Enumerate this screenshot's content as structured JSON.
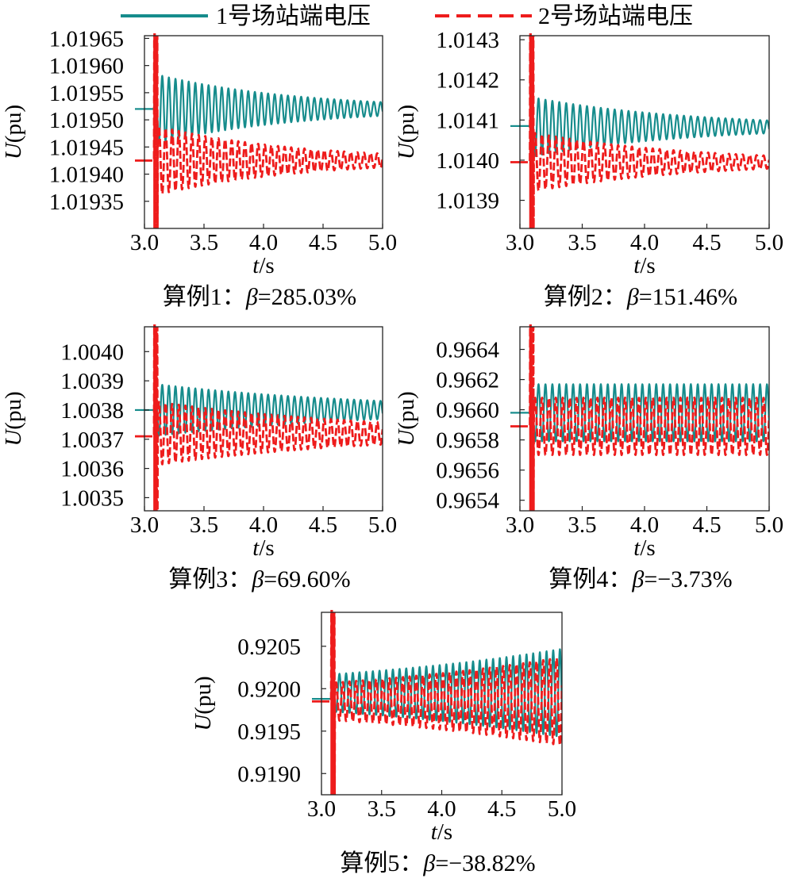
{
  "legend": {
    "items": [
      {
        "label": "1号场站端电压",
        "color": "#168c8c",
        "dash": "solid"
      },
      {
        "label": "2号场站端电压",
        "color": "#ee1c1c",
        "dash": "dashed"
      }
    ]
  },
  "chart_data": [
    {
      "type": "line",
      "caption": "算例1：β=285.03%",
      "xlabel": "t/s",
      "ylabel": "U(pu)",
      "xlim": [
        3.0,
        5.0
      ],
      "xticks": [
        3.0,
        3.5,
        4.0,
        4.5,
        5.0
      ],
      "ylim": [
        1.0193,
        1.019655
      ],
      "yticks": [
        1.01935,
        1.0194,
        1.01945,
        1.0195,
        1.01955,
        1.0196,
        1.01965
      ],
      "yticklabels": [
        "1.01935",
        "1.01940",
        "1.01945",
        "1.01950",
        "1.01955",
        "1.01960",
        "1.01965"
      ],
      "grid": false,
      "series": [
        {
          "name": "1号场站端电压",
          "color": "#168c8c",
          "dash": "solid",
          "pre_fault": 1.01952,
          "settle": 1.01952,
          "amp_start": 6.5e-05,
          "decay": 0.85,
          "freq": 18,
          "phase": 0
        },
        {
          "name": "2号场站端电压",
          "color": "#ee1c1c",
          "dash": "dashed",
          "pre_fault": 1.019425,
          "settle": 1.019425,
          "amp_start": 6.5e-05,
          "decay": 0.85,
          "freq": 18,
          "phase": 3.14,
          "spike_max": 1.01966,
          "spike_min": 1.0193
        }
      ]
    },
    {
      "type": "line",
      "caption": "算例2：β=151.46%",
      "xlabel": "t/s",
      "ylabel": "U(pu)",
      "xlim": [
        3.0,
        5.0
      ],
      "xticks": [
        3.0,
        3.5,
        4.0,
        4.5,
        5.0
      ],
      "ylim": [
        1.01383,
        1.01431
      ],
      "yticks": [
        1.0139,
        1.014,
        1.0141,
        1.0142,
        1.0143
      ],
      "yticklabels": [
        "1.0139",
        "1.0140",
        "1.0141",
        "1.0142",
        "1.0143"
      ],
      "grid": false,
      "series": [
        {
          "name": "1号场站端电压",
          "color": "#168c8c",
          "dash": "solid",
          "pre_fault": 1.014085,
          "settle": 1.014083,
          "amp_start": 7.5e-05,
          "decay": 0.8,
          "freq": 18,
          "phase": 0
        },
        {
          "name": "2号场站端电压",
          "color": "#ee1c1c",
          "dash": "dashed",
          "pre_fault": 1.013995,
          "settle": 1.013995,
          "amp_start": 7.5e-05,
          "decay": 0.8,
          "freq": 18,
          "phase": 3.14,
          "spike_max": 1.01431,
          "spike_min": 1.01383
        }
      ]
    },
    {
      "type": "line",
      "caption": "算例3：β=69.60%",
      "xlabel": "t/s",
      "ylabel": "U(pu)",
      "xlim": [
        3.0,
        5.0
      ],
      "xticks": [
        3.0,
        3.5,
        4.0,
        4.5,
        5.0
      ],
      "ylim": [
        1.003455,
        1.004085
      ],
      "yticks": [
        1.0035,
        1.0036,
        1.0037,
        1.0038,
        1.0039,
        1.004
      ],
      "yticklabels": [
        "1.0035",
        "1.0036",
        "1.0037",
        "1.0038",
        "1.0039",
        "1.0040"
      ],
      "grid": false,
      "series": [
        {
          "name": "1号场站端电压",
          "color": "#168c8c",
          "dash": "solid",
          "pre_fault": 1.0038,
          "settle": 1.0038,
          "amp_start": 9e-05,
          "decay": 0.55,
          "freq": 18,
          "phase": 0
        },
        {
          "name": "2号场站端电压",
          "color": "#ee1c1c",
          "dash": "dashed",
          "pre_fault": 1.00371,
          "settle": 1.00372,
          "amp_start": 0.00011,
          "decay": 0.55,
          "freq": 18,
          "phase": 3.14,
          "spike_max": 1.004085,
          "spike_min": 1.003455
        }
      ]
    },
    {
      "type": "line",
      "caption": "算例4：β=−3.73%",
      "xlabel": "t/s",
      "ylabel": "U(pu)",
      "xlim": [
        3.0,
        5.0
      ],
      "xticks": [
        3.0,
        3.5,
        4.0,
        4.5,
        5.0
      ],
      "ylim": [
        0.96533,
        0.96655
      ],
      "yticks": [
        0.9654,
        0.9656,
        0.9658,
        0.966,
        0.9662,
        0.9664
      ],
      "yticklabels": [
        "0.9654",
        "0.9656",
        "0.9658",
        "0.9660",
        "0.9662",
        "0.9664"
      ],
      "grid": false,
      "series": [
        {
          "name": "1号场站端电压",
          "color": "#168c8c",
          "dash": "solid",
          "pre_fault": 0.96598,
          "settle": 0.96598,
          "amp_start": 0.00019,
          "decay": 0.0,
          "freq": 18,
          "phase": 0
        },
        {
          "name": "2号场站端电压",
          "color": "#ee1c1c",
          "dash": "dashed",
          "pre_fault": 0.96589,
          "settle": 0.96589,
          "amp_start": 0.00019,
          "decay": 0.0,
          "freq": 18,
          "phase": 3.14,
          "spike_max": 0.96655,
          "spike_min": 0.96533
        }
      ]
    },
    {
      "type": "line",
      "caption": "算例5：β=−38.82%",
      "xlabel": "t/s",
      "ylabel": "U(pu)",
      "xlim": [
        3.0,
        5.0
      ],
      "xticks": [
        3.0,
        3.5,
        4.0,
        4.5,
        5.0
      ],
      "ylim": [
        0.91875,
        0.9209
      ],
      "yticks": [
        0.919,
        0.9195,
        0.92,
        0.9205
      ],
      "yticklabels": [
        "0.9190",
        "0.9195",
        "0.9200",
        "0.9205"
      ],
      "grid": false,
      "series": [
        {
          "name": "1号场站端电压",
          "color": "#168c8c",
          "dash": "solid",
          "pre_fault": 0.91988,
          "settle": 0.91995,
          "amp_start": 0.00022,
          "decay": -0.45,
          "freq": 18,
          "phase": 0
        },
        {
          "name": "2号场站端电压",
          "color": "#ee1c1c",
          "dash": "dashed",
          "pre_fault": 0.91985,
          "settle": 0.91985,
          "amp_start": 0.00022,
          "decay": -0.45,
          "freq": 18,
          "phase": 3.14,
          "spike_max": 0.9209,
          "spike_min": 0.91875
        }
      ]
    }
  ]
}
